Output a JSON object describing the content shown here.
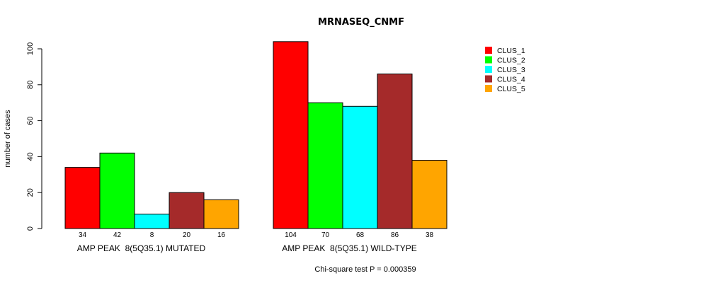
{
  "chart_data": {
    "type": "bar",
    "title": "MRNASEQ_CNMF",
    "ylabel": "number of cases",
    "xlabel": "",
    "ylim": [
      0,
      100
    ],
    "yticks": [
      0,
      20,
      40,
      60,
      80,
      100
    ],
    "groups": [
      "AMP PEAK  8(5Q35.1) MUTATED",
      "AMP PEAK  8(5Q35.1) WILD-TYPE"
    ],
    "series": [
      {
        "name": "CLUS_1",
        "color": "#ff0000",
        "values": [
          34,
          104
        ]
      },
      {
        "name": "CLUS_2",
        "color": "#00ff00",
        "values": [
          42,
          70
        ]
      },
      {
        "name": "CLUS_3",
        "color": "#00ffff",
        "values": [
          8,
          68
        ]
      },
      {
        "name": "CLUS_4",
        "color": "#a52a2a",
        "values": [
          20,
          86
        ]
      },
      {
        "name": "CLUS_5",
        "color": "#ffa500",
        "values": [
          16,
          38
        ]
      }
    ],
    "bar_labels": [
      [
        "34",
        "42",
        "8",
        "20",
        "16"
      ],
      [
        "104",
        "70",
        "68",
        "86",
        "38"
      ]
    ],
    "footnote": "Chi-square test P = 0.000359",
    "legend_position": "top-right"
  }
}
